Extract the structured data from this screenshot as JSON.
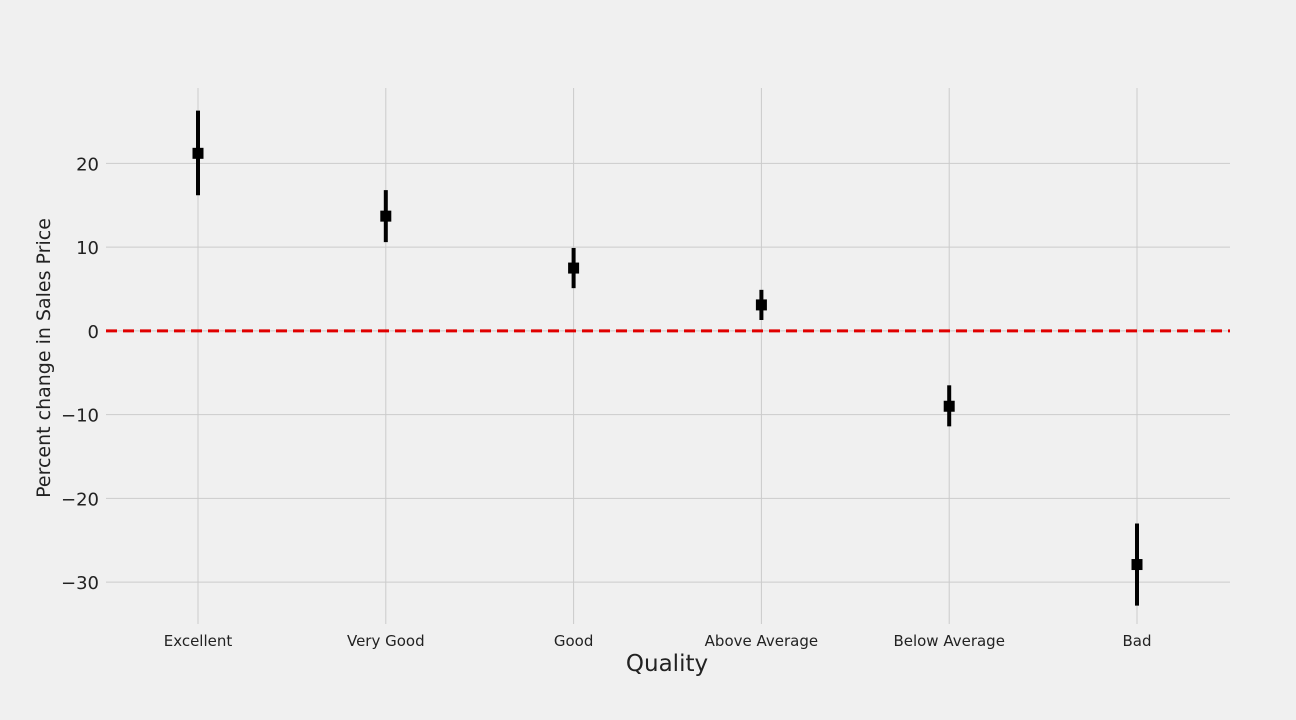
{
  "chart_data": {
    "type": "scatter",
    "title": "",
    "xlabel": "Quality",
    "ylabel": "Percent change in Sales Price",
    "categories": [
      "Excellent",
      "Very Good",
      "Good",
      "Above Average",
      "Below Average",
      "Bad"
    ],
    "series": [
      {
        "values": [
          21.2,
          13.7,
          7.5,
          3.1,
          -9.0,
          -27.9
        ],
        "lower": [
          16.2,
          10.6,
          5.1,
          1.3,
          -11.4,
          -32.8
        ],
        "upper": [
          26.3,
          16.8,
          9.9,
          4.9,
          -6.5,
          -23.0
        ]
      }
    ],
    "yticks": [
      20,
      10,
      0,
      -10,
      -20,
      -30
    ],
    "ytick_labels": [
      "20",
      "10",
      "0",
      "−10",
      "−20",
      "−30"
    ],
    "ylim": [
      -35,
      29
    ],
    "reference_line": {
      "y": 0,
      "style": "dashed",
      "color": "#e00000"
    },
    "grid": true,
    "colors": {
      "marker": "#000000",
      "grid": "#cbcbcb",
      "background": "#f0f0f0"
    }
  }
}
